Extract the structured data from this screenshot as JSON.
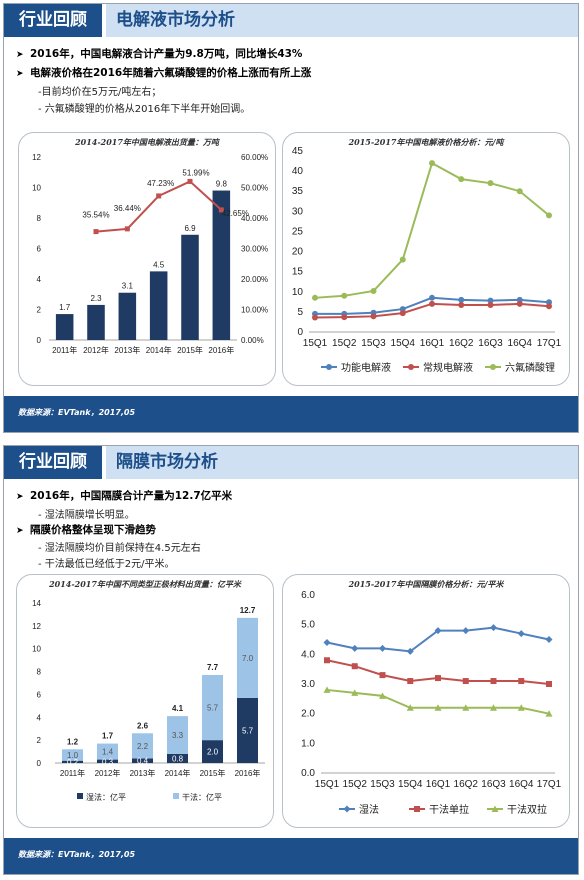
{
  "slides": [
    {
      "section": "行业回顾",
      "title": "电解液市场分析",
      "bullets": [
        {
          "text": "2016年，中国电解液合计产量为9.8万吨，同比增长43%",
          "subs": []
        },
        {
          "text": "电解液价格在2016年随着六氟磷酸锂的价格上涨而有所上涨",
          "subs": [
            "-目前均价在5万元/吨左右；",
            "- 六氟磷酸锂的价格从2016年下半年开始回调。"
          ]
        }
      ],
      "source": "数据来源：EVTank，2017,05"
    },
    {
      "section": "行业回顾",
      "title": "隔膜市场分析",
      "bullets": [
        {
          "text": "2016年，中国隔膜合计产量为12.7亿平米",
          "subs": [
            "- 湿法隔膜增长明显。"
          ]
        },
        {
          "text": "隔膜价格整体呈现下滑趋势",
          "subs": [
            "- 湿法隔膜均价目前保持在4.5元左右",
            "- 干法最低已经低于2元/平米。"
          ]
        }
      ],
      "source": "数据来源：EVTank，2017,05"
    }
  ],
  "chart_data": [
    {
      "type": "bar+line",
      "title": "2014-2017年中国电解液出货量：万吨",
      "categories": [
        "2011年",
        "2012年",
        "2013年",
        "2014年",
        "2015年",
        "2016年"
      ],
      "series": [
        {
          "values": [
            1.7,
            2.3,
            3.1,
            4.5,
            6.9,
            9.8
          ],
          "kind": "bar",
          "axis": "left",
          "color": "#1f3b63"
        },
        {
          "values": [
            null,
            35.54,
            36.44,
            47.23,
            51.99,
            42.65
          ],
          "labels": [
            "",
            "35.54%",
            "36.44%",
            "47.23%",
            "51.99%",
            "42.65%"
          ],
          "kind": "line",
          "axis": "right",
          "color": "#c0504d"
        }
      ],
      "yticks": [
        "0",
        "2",
        "4",
        "6",
        "8",
        "10",
        "12"
      ],
      "y2ticks": [
        "0.00%",
        "10.00%",
        "20.00%",
        "30.00%",
        "40.00%",
        "50.00%",
        "60.00%"
      ],
      "ylim": [
        0,
        12
      ],
      "y2lim": [
        0,
        60
      ]
    },
    {
      "type": "line",
      "title": "2015-2017年中国电解液价格分析：元/吨",
      "categories": [
        "15Q1",
        "15Q2",
        "15Q3",
        "15Q4",
        "16Q1",
        "16Q2",
        "16Q3",
        "16Q4",
        "17Q1"
      ],
      "series": [
        {
          "name": "功能电解液",
          "values": [
            4.5,
            4.5,
            4.8,
            5.7,
            8.5,
            8.0,
            7.8,
            8.0,
            7.4
          ],
          "color": "#4f81bd"
        },
        {
          "name": "常规电解液",
          "values": [
            3.6,
            3.7,
            3.9,
            4.7,
            7.0,
            6.7,
            6.7,
            7.0,
            6.4
          ],
          "color": "#c0504d"
        },
        {
          "name": "六氟磷酸锂",
          "values": [
            8.5,
            9.0,
            10.2,
            18.0,
            42.0,
            38.0,
            37.0,
            35.0,
            29.0
          ],
          "color": "#9bbb59"
        }
      ],
      "yticks": [
        "0",
        "5",
        "10",
        "15",
        "20",
        "25",
        "30",
        "35",
        "40",
        "45"
      ],
      "ylim": [
        0,
        45
      ]
    },
    {
      "type": "stacked-bar",
      "title": "2014-2017年中国不同类型正极材料出货量：亿平米",
      "categories": [
        "2011年",
        "2012年",
        "2013年",
        "2014年",
        "2015年",
        "2016年"
      ],
      "series": [
        {
          "name": "湿法：亿平",
          "values": [
            0.2,
            0.3,
            0.4,
            0.8,
            2.0,
            5.7
          ],
          "labels": [
            "0.2",
            "0.3",
            "0.4",
            "0.8",
            "2.0",
            "5.7"
          ],
          "color": "#1f3b63"
        },
        {
          "name": "干法：亿平",
          "values": [
            1.0,
            1.4,
            2.2,
            3.3,
            5.7,
            7.0
          ],
          "labels": [
            "1.0",
            "1.4",
            "2.2",
            "3.3",
            "5.7",
            "7.0"
          ],
          "color": "#9dc3e6"
        }
      ],
      "totals": [
        "1.2",
        "1.7",
        "2.6",
        "4.1",
        "7.7",
        "12.7"
      ],
      "yticks": [
        "0",
        "2",
        "4",
        "6",
        "8",
        "10",
        "12",
        "14"
      ],
      "ylim": [
        0,
        14
      ]
    },
    {
      "type": "line",
      "title": "2015-2017年中国隔膜价格分析：元/平米",
      "categories": [
        "15Q1",
        "15Q2",
        "15Q3",
        "15Q4",
        "16Q1",
        "16Q2",
        "16Q3",
        "16Q4",
        "17Q1"
      ],
      "series": [
        {
          "name": "湿法",
          "values": [
            4.4,
            4.2,
            4.2,
            4.1,
            4.8,
            4.8,
            4.9,
            4.7,
            4.5
          ],
          "color": "#4f81bd",
          "marker": "diamond"
        },
        {
          "name": "干法单拉",
          "values": [
            3.8,
            3.6,
            3.3,
            3.1,
            3.2,
            3.1,
            3.1,
            3.1,
            3.0
          ],
          "color": "#c0504d",
          "marker": "square"
        },
        {
          "name": "干法双拉",
          "values": [
            2.8,
            2.7,
            2.6,
            2.2,
            2.2,
            2.2,
            2.2,
            2.2,
            2.0
          ],
          "color": "#9bbb59",
          "marker": "triangle"
        }
      ],
      "yticks": [
        "0.0",
        "1.0",
        "2.0",
        "3.0",
        "4.0",
        "5.0",
        "6.0"
      ],
      "ylim": [
        0,
        6
      ]
    }
  ]
}
